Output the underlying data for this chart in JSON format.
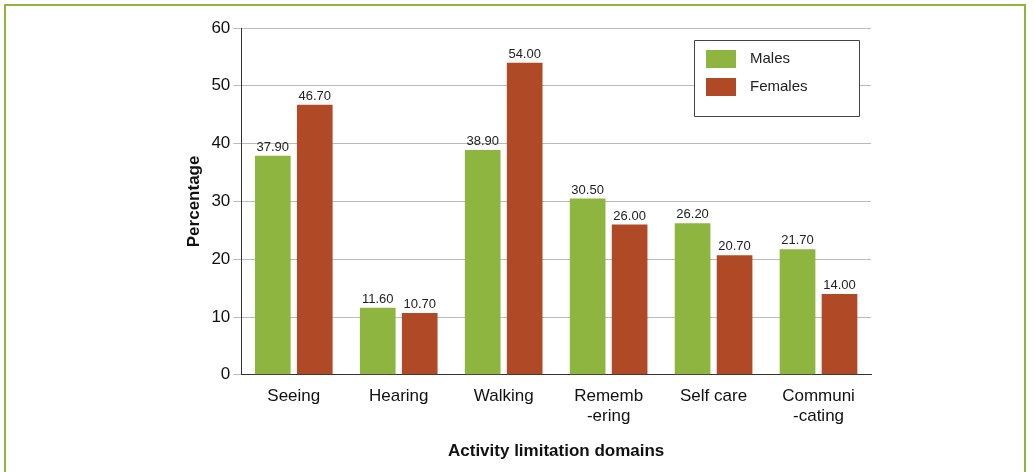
{
  "chart_data": {
    "type": "bar",
    "xlabel": "Activity limitation domains",
    "ylabel": "Percentage",
    "categories": [
      "Seeing",
      "Hearing",
      "Walking",
      "Rememb\n-ering",
      "Self care",
      "Communi\n-cating"
    ],
    "series": [
      {
        "name": "Males",
        "color": "#8db53f",
        "values": [
          37.9,
          11.6,
          38.9,
          30.5,
          26.2,
          21.7
        ],
        "value_labels": [
          "37.90",
          "11.60",
          "38.90",
          "30.50",
          "26.20",
          "21.70"
        ]
      },
      {
        "name": "Females",
        "color": "#b04a26",
        "values": [
          46.7,
          10.7,
          54.0,
          26.0,
          20.7,
          14.0
        ],
        "value_labels": [
          "46.70",
          "10.70",
          "54.00",
          "26.00",
          "20.70",
          "14.00"
        ]
      }
    ],
    "ylim": [
      0,
      60
    ],
    "yticks": [
      0,
      10,
      20,
      30,
      40,
      50,
      60
    ],
    "grid": "y",
    "legend": "top right"
  }
}
